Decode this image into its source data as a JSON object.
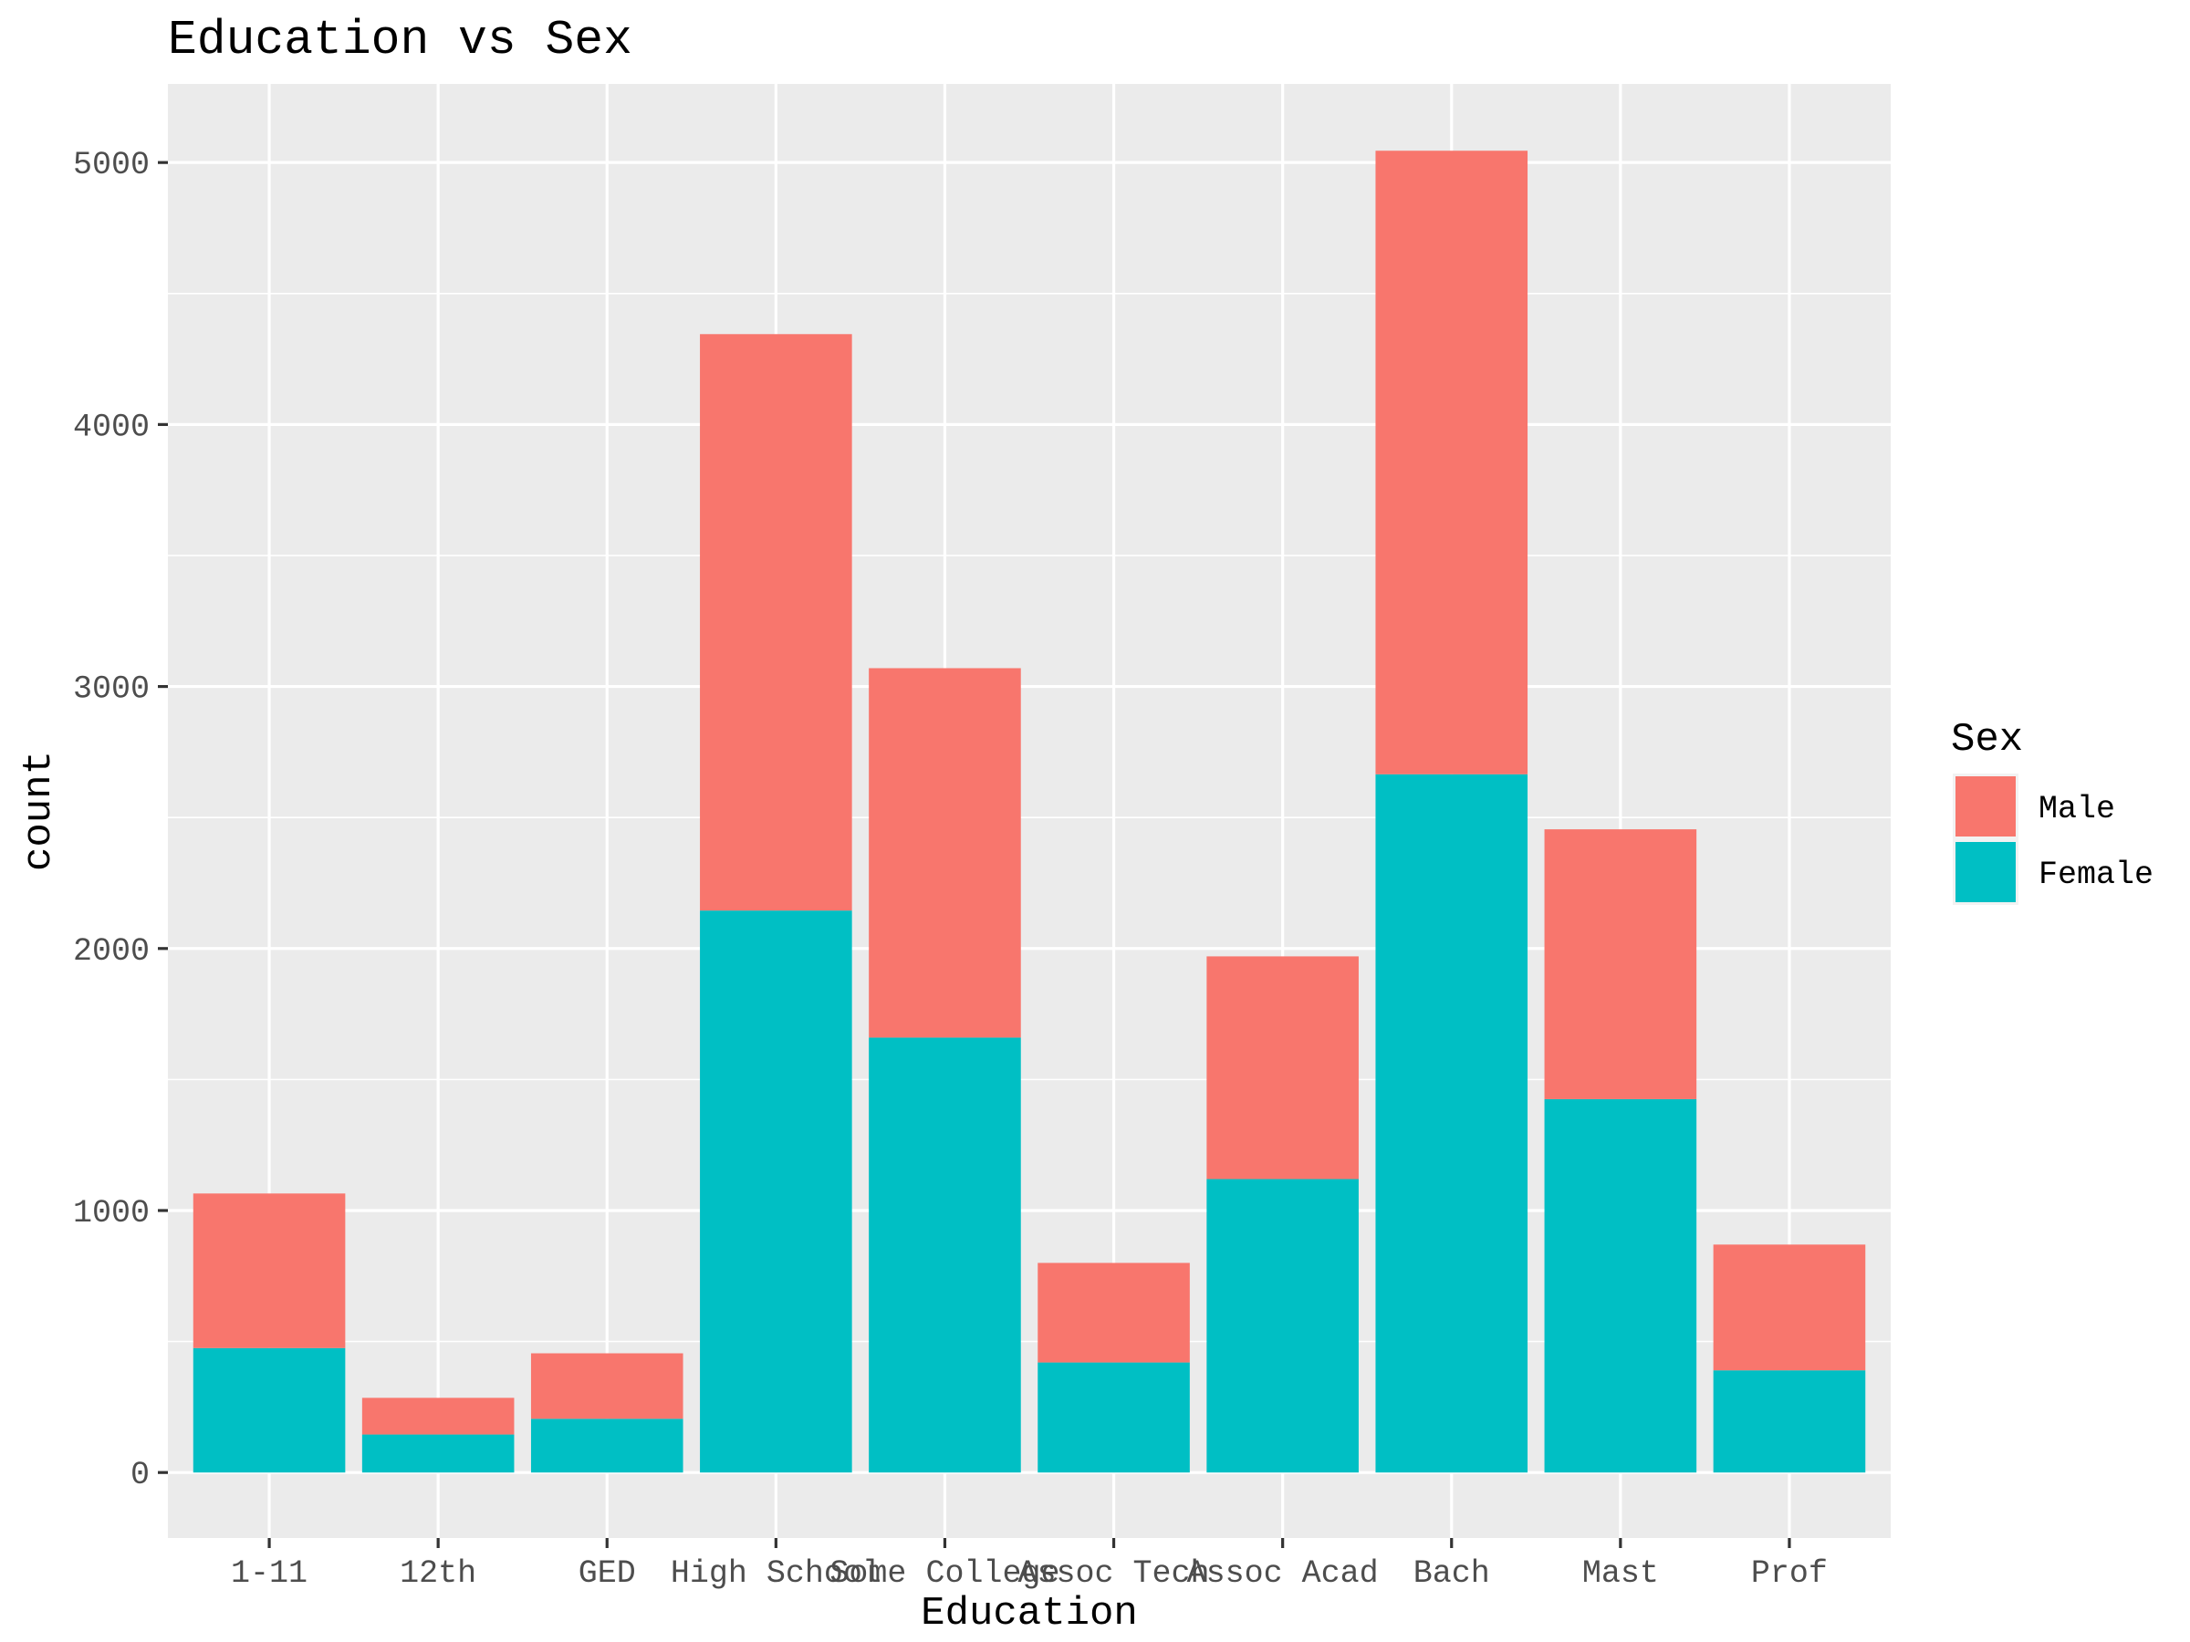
{
  "chart_data": {
    "type": "bar",
    "stacked": true,
    "title": "Education vs Sex",
    "xlabel": "Education",
    "ylabel": "count",
    "categories": [
      "1-11",
      "12th",
      "GED",
      "High School",
      "Some College",
      "Assoc Tech",
      "Assoc Acad",
      "Bach",
      "Mast",
      "Prof"
    ],
    "series": [
      {
        "name": "Male",
        "color": "#F8766D",
        "values": [
          590,
          140,
          250,
          2200,
          1410,
          380,
          850,
          2380,
          1030,
          480
        ]
      },
      {
        "name": "Female",
        "color": "#00BFC4",
        "values": [
          475,
          145,
          205,
          2145,
          1660,
          420,
          1120,
          2665,
          1425,
          390
        ]
      }
    ],
    "stack_order_bottom_to_top": [
      "Female",
      "Male"
    ],
    "ylim": [
      -250,
      5300
    ],
    "yticks": [
      0,
      1000,
      2000,
      3000,
      4000,
      5000
    ],
    "ytick_labels": [
      "0",
      "1000",
      "2000",
      "3000",
      "4000",
      "5000"
    ],
    "grid": true,
    "panel_background": "#EBEBEB",
    "grid_color": "#FFFFFF",
    "legend": {
      "title": "Sex",
      "placement": "right",
      "items": [
        "Male",
        "Female"
      ]
    }
  }
}
